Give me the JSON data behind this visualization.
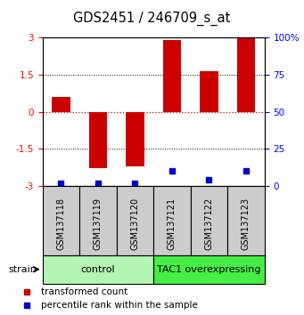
{
  "title": "GDS2451 / 246709_s_at",
  "samples": [
    "GSM137118",
    "GSM137119",
    "GSM137120",
    "GSM137121",
    "GSM137122",
    "GSM137123"
  ],
  "transformed_counts": [
    0.6,
    -2.3,
    -2.2,
    2.9,
    1.65,
    3.0
  ],
  "percentile_ranks": [
    2,
    2,
    2,
    10,
    4,
    10
  ],
  "ylim_left": [
    -3,
    3
  ],
  "ylim_right": [
    0,
    100
  ],
  "yticks_left": [
    -3,
    -1.5,
    0,
    1.5,
    3
  ],
  "yticks_left_labels": [
    "-3",
    "-1.5",
    "0",
    "1.5",
    "3"
  ],
  "yticks_right": [
    0,
    25,
    50,
    75,
    100
  ],
  "yticks_right_labels": [
    "0",
    "25",
    "50",
    "75",
    "100%"
  ],
  "groups": [
    {
      "label": "control",
      "indices": [
        0,
        1,
        2
      ],
      "color": "#b3f5b3"
    },
    {
      "label": "TAC1 overexpressing",
      "indices": [
        3,
        4,
        5
      ],
      "color": "#44ee44"
    }
  ],
  "bar_color": "#cc0000",
  "dot_color": "#0000cc",
  "zero_line_color": "#cc0000",
  "bg_color": "#ffffff",
  "label_area_bg": "#cccccc",
  "title_fontsize": 10.5,
  "tick_fontsize": 7.5,
  "legend_fontsize": 7.5,
  "group_label_fontsize": 8,
  "sample_fontsize": 7,
  "bar_width": 0.5
}
